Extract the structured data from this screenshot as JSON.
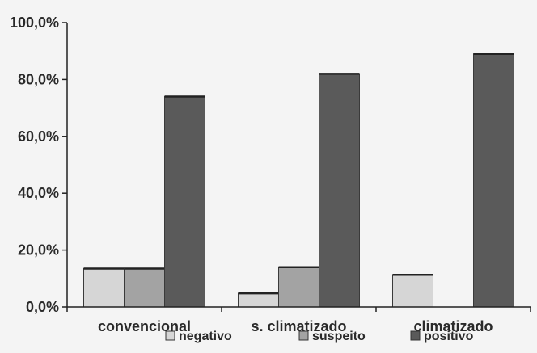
{
  "chart_data": {
    "type": "bar",
    "categories": [
      "convencional",
      "s. climatizado",
      "climatizado"
    ],
    "series": [
      {
        "name": "negativo",
        "values": [
          13.5,
          4.8,
          11.3
        ],
        "color": "#d6d6d6"
      },
      {
        "name": "suspeito",
        "values": [
          13.5,
          14.0,
          0.0
        ],
        "color": "#a3a3a3"
      },
      {
        "name": "positivo",
        "values": [
          74.0,
          82.0,
          89.0
        ],
        "color": "#5a5a5a"
      }
    ],
    "y_ticks": [
      "0,0%",
      "20,0%",
      "40,0%",
      "60,0%",
      "80,0%",
      "100,0%"
    ],
    "ylim": [
      0,
      100
    ],
    "grid": false,
    "legend_position": "bottom"
  }
}
